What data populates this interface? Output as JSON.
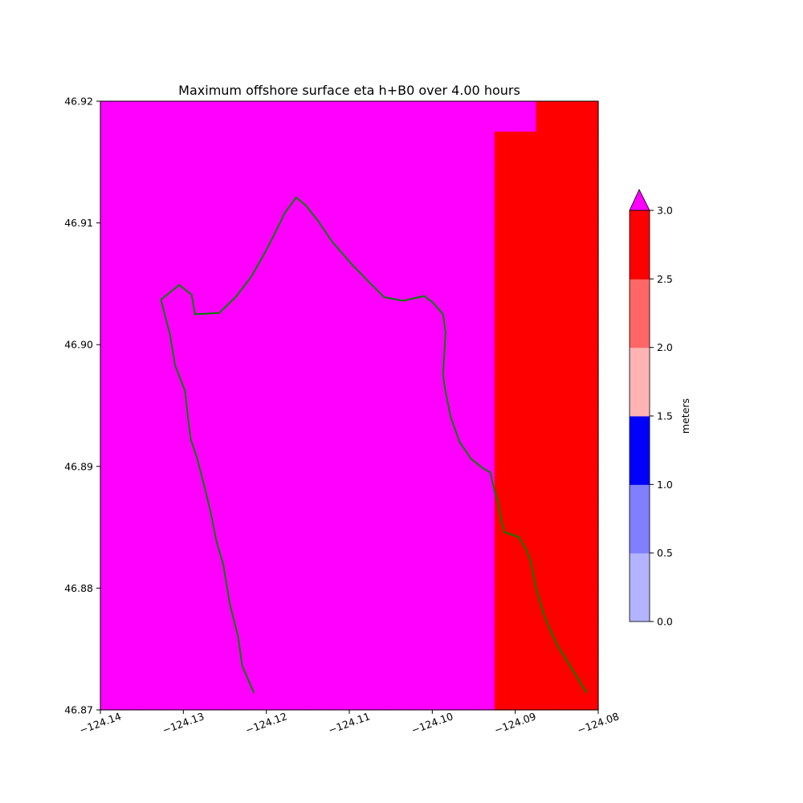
{
  "title": "Maximum offshore surface eta h+B0 over 4.00 hours",
  "colors": {
    "magenta": "#ff00ff",
    "red": "#ff0000",
    "salmon": "#ff6666",
    "pink": "#ffb3b3",
    "coastline": "#008000"
  },
  "map": {
    "x_ticks": [
      {
        "value": -124.14,
        "label": "−124.14"
      },
      {
        "value": -124.13,
        "label": "−124.13"
      },
      {
        "value": -124.12,
        "label": "−124.12"
      },
      {
        "value": -124.11,
        "label": "−124.11"
      },
      {
        "value": -124.1,
        "label": "−124.10"
      },
      {
        "value": -124.09,
        "label": "−124.09"
      },
      {
        "value": -124.08,
        "label": "−124.08"
      }
    ],
    "y_ticks": [
      {
        "value": 46.87,
        "label": "46.87"
      },
      {
        "value": 46.88,
        "label": "46.88"
      },
      {
        "value": 46.89,
        "label": "46.89"
      },
      {
        "value": 46.9,
        "label": "46.90"
      },
      {
        "value": 46.91,
        "label": "46.91"
      },
      {
        "value": 46.92,
        "label": "46.92"
      }
    ],
    "xlim": [
      -124.14,
      -124.08
    ],
    "ylim": [
      46.87,
      46.92
    ]
  },
  "grid": {
    "columns": 24,
    "rows": 20,
    "legend": {
      "M": "magenta",
      "R": "red",
      "S": "salmon",
      "P": "pink",
      ".": "none"
    },
    "cells": [
      "MMMMMMMMMMMMMMMMMMMMMRRR",
      "MMMMMMMMMMMMMMMMMMMRRRRR",
      "MMMMMMMMMMMMMMMMMMMRRRRR",
      "MMMMMMMMMMMMMMMMMMMRRRRR",
      "MMMMMMMMMMMMMMMMMMMRRRRR",
      "MMMMMMMMMMMMMMMMMMMRRRRR",
      "MMMMMMMMMMMMMMMMMMMRRRRR",
      "MMMMMMMMMMMMMMMMMMMRRRRR",
      "MMMMMMMMMMMMMMMMMMMRRRRR",
      "MMMMMMMMMMMMMMMMMMMRRRRR",
      "MMMMMMMMMMMMMMMMMMMRRRRR",
      "MMMMMMMMMMMMMMMMMMMRRRRR",
      "MMMMMMMMMMMMMMMMMMMRRRRR",
      "MMMMMMMMMMMMMMMMMMMRRRRR",
      "MMMMMMMMMMMMMMMMMMMRRRRR",
      "MMMMMMMMMMMMMMMMMMMRRRRR",
      "MMMMMMMMMMMMMMMMMMMRRRRR",
      "MMMMMMMMMMMMMMMMMMMRRRRR",
      "MMMMMMMMMMMMMMMMMMMRRRRR",
      "MMMMMMMMMMMMMMMMMMMRRRRR"
    ]
  },
  "coastline": [
    [
      -124.1215,
      46.8714
    ],
    [
      -124.1229,
      46.8736
    ],
    [
      -124.1234,
      46.876
    ],
    [
      -124.1244,
      46.8787
    ],
    [
      -124.1252,
      46.882
    ],
    [
      -124.126,
      46.8838
    ],
    [
      -124.1267,
      46.8862
    ],
    [
      -124.1274,
      46.8882
    ],
    [
      -124.1284,
      46.8908
    ],
    [
      -124.1291,
      46.8922
    ],
    [
      -124.1294,
      46.8938
    ],
    [
      -124.1298,
      46.8962
    ],
    [
      -124.131,
      46.8983
    ],
    [
      -124.1316,
      46.9008
    ],
    [
      -124.1327,
      46.9037
    ],
    [
      -124.1305,
      46.9049
    ],
    [
      -124.129,
      46.9041
    ],
    [
      -124.1286,
      46.9025
    ],
    [
      -124.1257,
      46.9026
    ],
    [
      -124.1237,
      46.9039
    ],
    [
      -124.1218,
      46.9056
    ],
    [
      -124.1203,
      46.9074
    ],
    [
      -124.119,
      46.9091
    ],
    [
      -124.1178,
      46.9108
    ],
    [
      -124.1164,
      46.9121
    ],
    [
      -124.1152,
      46.9114
    ],
    [
      -124.1137,
      46.9101
    ],
    [
      -124.112,
      46.9084
    ],
    [
      -124.1097,
      46.9066
    ],
    [
      -124.1077,
      46.9052
    ],
    [
      -124.1058,
      46.9039
    ],
    [
      -124.1035,
      46.9036
    ],
    [
      -124.101,
      46.904
    ],
    [
      -124.1,
      46.9035
    ],
    [
      -124.0987,
      46.9025
    ],
    [
      -124.0984,
      46.901
    ],
    [
      -124.0987,
      46.8976
    ],
    [
      -124.0985,
      46.8965
    ],
    [
      -124.0978,
      46.8941
    ],
    [
      -124.0967,
      46.892
    ],
    [
      -124.0953,
      46.8906
    ],
    [
      -124.0938,
      46.8898
    ],
    [
      -124.093,
      46.8895
    ],
    [
      -124.0925,
      46.888
    ],
    [
      -124.0921,
      46.8871
    ],
    [
      -124.0917,
      46.8856
    ],
    [
      -124.0913,
      46.8846
    ],
    [
      -124.0896,
      46.8842
    ],
    [
      -124.0887,
      46.8832
    ],
    [
      -124.0881,
      46.8821
    ],
    [
      -124.0875,
      46.88
    ],
    [
      -124.0866,
      46.8779
    ],
    [
      -124.086,
      46.8769
    ],
    [
      -124.085,
      46.8754
    ],
    [
      -124.0833,
      46.8735
    ],
    [
      -124.0814,
      46.8714
    ]
  ],
  "colorbar": {
    "label": "meters",
    "ticks": [
      "0.0",
      "0.5",
      "1.0",
      "1.5",
      "2.0",
      "2.5",
      "3.0"
    ],
    "levels": [
      0,
      0.5,
      1.0,
      1.5,
      2.0,
      2.5,
      3.0
    ],
    "band_colors": [
      "#b3b3ff",
      "#8080ff",
      "#0000ff",
      "#ffb3b3",
      "#ff6666",
      "#ff0000"
    ],
    "extend_color": "#ff00ff"
  }
}
